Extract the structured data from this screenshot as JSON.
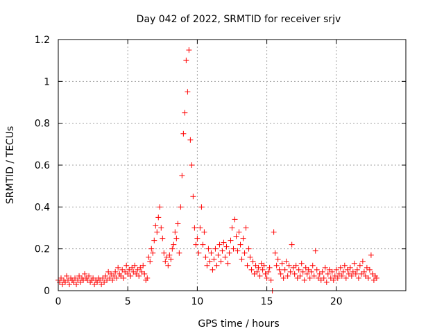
{
  "chart_data": {
    "type": "scatter",
    "title": "Day 042 of 2022, SRMTID for receiver srjv",
    "xlabel": "GPS time / hours",
    "ylabel": "SRMTID / TECUs",
    "xlim": [
      0,
      25
    ],
    "ylim": [
      0,
      1.2
    ],
    "x_ticks": [
      0,
      5,
      10,
      15,
      20
    ],
    "x_tick_labels": [
      "0",
      "5",
      "10",
      "15",
      "20"
    ],
    "y_ticks": [
      0,
      0.2,
      0.4,
      0.6,
      0.8,
      1.0,
      1.2
    ],
    "y_tick_labels": [
      "0",
      "0.2",
      "0.4",
      "0.6",
      "0.8",
      "1",
      "1.2"
    ],
    "grid": true,
    "marker": "plus",
    "series": [
      {
        "name": "srjv",
        "color": "#ff0000",
        "points": [
          [
            0.0,
            0.05
          ],
          [
            0.1,
            0.04
          ],
          [
            0.2,
            0.06
          ],
          [
            0.3,
            0.03
          ],
          [
            0.4,
            0.05
          ],
          [
            0.5,
            0.04
          ],
          [
            0.6,
            0.07
          ],
          [
            0.7,
            0.05
          ],
          [
            0.8,
            0.03
          ],
          [
            0.9,
            0.06
          ],
          [
            1.0,
            0.05
          ],
          [
            1.1,
            0.04
          ],
          [
            1.2,
            0.06
          ],
          [
            1.3,
            0.03
          ],
          [
            1.4,
            0.05
          ],
          [
            1.5,
            0.07
          ],
          [
            1.6,
            0.04
          ],
          [
            1.7,
            0.06
          ],
          [
            1.8,
            0.05
          ],
          [
            1.9,
            0.08
          ],
          [
            2.0,
            0.06
          ],
          [
            2.1,
            0.05
          ],
          [
            2.2,
            0.07
          ],
          [
            2.3,
            0.04
          ],
          [
            2.4,
            0.05
          ],
          [
            2.5,
            0.06
          ],
          [
            2.6,
            0.03
          ],
          [
            2.7,
            0.05
          ],
          [
            2.8,
            0.04
          ],
          [
            2.9,
            0.06
          ],
          [
            3.0,
            0.05
          ],
          [
            3.1,
            0.03
          ],
          [
            3.2,
            0.06
          ],
          [
            3.3,
            0.04
          ],
          [
            3.4,
            0.07
          ],
          [
            3.5,
            0.05
          ],
          [
            3.6,
            0.09
          ],
          [
            3.7,
            0.06
          ],
          [
            3.8,
            0.08
          ],
          [
            3.9,
            0.05
          ],
          [
            4.0,
            0.07
          ],
          [
            4.1,
            0.09
          ],
          [
            4.2,
            0.06
          ],
          [
            4.3,
            0.11
          ],
          [
            4.4,
            0.08
          ],
          [
            4.5,
            0.07
          ],
          [
            4.6,
            0.1
          ],
          [
            4.7,
            0.06
          ],
          [
            4.8,
            0.09
          ],
          [
            4.9,
            0.12
          ],
          [
            5.0,
            0.08
          ],
          [
            5.1,
            0.1
          ],
          [
            5.2,
            0.07
          ],
          [
            5.3,
            0.11
          ],
          [
            5.4,
            0.09
          ],
          [
            5.5,
            0.12
          ],
          [
            5.6,
            0.08
          ],
          [
            5.7,
            0.1
          ],
          [
            5.8,
            0.07
          ],
          [
            5.9,
            0.11
          ],
          [
            6.0,
            0.09
          ],
          [
            6.1,
            0.12
          ],
          [
            6.2,
            0.08
          ],
          [
            6.3,
            0.05
          ],
          [
            6.4,
            0.06
          ],
          [
            6.5,
            0.16
          ],
          [
            6.6,
            0.14
          ],
          [
            6.7,
            0.2
          ],
          [
            6.8,
            0.18
          ],
          [
            6.9,
            0.24
          ],
          [
            7.0,
            0.31
          ],
          [
            7.1,
            0.28
          ],
          [
            7.2,
            0.35
          ],
          [
            7.3,
            0.4
          ],
          [
            7.4,
            0.3
          ],
          [
            7.5,
            0.25
          ],
          [
            7.6,
            0.18
          ],
          [
            7.7,
            0.14
          ],
          [
            7.8,
            0.16
          ],
          [
            7.9,
            0.12
          ],
          [
            8.0,
            0.17
          ],
          [
            8.1,
            0.15
          ],
          [
            8.2,
            0.2
          ],
          [
            8.3,
            0.22
          ],
          [
            8.4,
            0.28
          ],
          [
            8.5,
            0.25
          ],
          [
            8.6,
            0.32
          ],
          [
            8.7,
            0.18
          ],
          [
            8.8,
            0.4
          ],
          [
            8.9,
            0.55
          ],
          [
            9.0,
            0.75
          ],
          [
            9.1,
            0.85
          ],
          [
            9.2,
            1.1
          ],
          [
            9.3,
            0.95
          ],
          [
            9.4,
            1.15
          ],
          [
            9.5,
            0.72
          ],
          [
            9.6,
            0.6
          ],
          [
            9.7,
            0.45
          ],
          [
            9.8,
            0.3
          ],
          [
            9.9,
            0.22
          ],
          [
            10.0,
            0.25
          ],
          [
            10.1,
            0.18
          ],
          [
            10.2,
            0.3
          ],
          [
            10.3,
            0.4
          ],
          [
            10.4,
            0.22
          ],
          [
            10.5,
            0.28
          ],
          [
            10.6,
            0.16
          ],
          [
            10.7,
            0.12
          ],
          [
            10.8,
            0.2
          ],
          [
            10.9,
            0.14
          ],
          [
            11.0,
            0.18
          ],
          [
            11.1,
            0.1
          ],
          [
            11.2,
            0.15
          ],
          [
            11.3,
            0.2
          ],
          [
            11.4,
            0.12
          ],
          [
            11.5,
            0.17
          ],
          [
            11.6,
            0.22
          ],
          [
            11.7,
            0.14
          ],
          [
            11.8,
            0.19
          ],
          [
            11.9,
            0.23
          ],
          [
            12.0,
            0.16
          ],
          [
            12.1,
            0.21
          ],
          [
            12.2,
            0.13
          ],
          [
            12.3,
            0.18
          ],
          [
            12.4,
            0.24
          ],
          [
            12.5,
            0.3
          ],
          [
            12.6,
            0.2
          ],
          [
            12.7,
            0.34
          ],
          [
            12.8,
            0.26
          ],
          [
            12.9,
            0.19
          ],
          [
            13.0,
            0.28
          ],
          [
            13.1,
            0.22
          ],
          [
            13.2,
            0.15
          ],
          [
            13.3,
            0.25
          ],
          [
            13.4,
            0.18
          ],
          [
            13.5,
            0.3
          ],
          [
            13.6,
            0.12
          ],
          [
            13.7,
            0.2
          ],
          [
            13.8,
            0.16
          ],
          [
            13.9,
            0.1
          ],
          [
            14.0,
            0.14
          ],
          [
            14.1,
            0.08
          ],
          [
            14.2,
            0.12
          ],
          [
            14.3,
            0.09
          ],
          [
            14.4,
            0.11
          ],
          [
            14.5,
            0.07
          ],
          [
            14.6,
            0.13
          ],
          [
            14.7,
            0.1
          ],
          [
            14.8,
            0.12
          ],
          [
            14.9,
            0.08
          ],
          [
            15.0,
            0.06
          ],
          [
            15.1,
            0.09
          ],
          [
            15.2,
            0.11
          ],
          [
            15.3,
            0.05
          ],
          [
            15.4,
            0.0
          ],
          [
            15.5,
            0.28
          ],
          [
            15.6,
            0.18
          ],
          [
            15.7,
            0.12
          ],
          [
            15.8,
            0.15
          ],
          [
            15.9,
            0.1
          ],
          [
            16.0,
            0.08
          ],
          [
            16.1,
            0.13
          ],
          [
            16.2,
            0.06
          ],
          [
            16.3,
            0.1
          ],
          [
            16.4,
            0.14
          ],
          [
            16.5,
            0.07
          ],
          [
            16.6,
            0.12
          ],
          [
            16.7,
            0.09
          ],
          [
            16.8,
            0.22
          ],
          [
            16.9,
            0.11
          ],
          [
            17.0,
            0.08
          ],
          [
            17.1,
            0.12
          ],
          [
            17.2,
            0.06
          ],
          [
            17.3,
            0.1
          ],
          [
            17.4,
            0.07
          ],
          [
            17.5,
            0.13
          ],
          [
            17.6,
            0.09
          ],
          [
            17.7,
            0.05
          ],
          [
            17.8,
            0.11
          ],
          [
            17.9,
            0.08
          ],
          [
            18.0,
            0.1
          ],
          [
            18.1,
            0.06
          ],
          [
            18.2,
            0.09
          ],
          [
            18.3,
            0.12
          ],
          [
            18.4,
            0.07
          ],
          [
            18.5,
            0.19
          ],
          [
            18.6,
            0.1
          ],
          [
            18.7,
            0.06
          ],
          [
            18.8,
            0.08
          ],
          [
            18.9,
            0.05
          ],
          [
            19.0,
            0.09
          ],
          [
            19.1,
            0.06
          ],
          [
            19.2,
            0.11
          ],
          [
            19.3,
            0.04
          ],
          [
            19.4,
            0.08
          ],
          [
            19.5,
            0.1
          ],
          [
            19.6,
            0.06
          ],
          [
            19.7,
            0.09
          ],
          [
            19.8,
            0.05
          ],
          [
            19.9,
            0.07
          ],
          [
            20.0,
            0.1
          ],
          [
            20.1,
            0.06
          ],
          [
            20.2,
            0.08
          ],
          [
            20.3,
            0.11
          ],
          [
            20.4,
            0.07
          ],
          [
            20.5,
            0.09
          ],
          [
            20.6,
            0.12
          ],
          [
            20.7,
            0.06
          ],
          [
            20.8,
            0.1
          ],
          [
            20.9,
            0.08
          ],
          [
            21.0,
            0.11
          ],
          [
            21.1,
            0.07
          ],
          [
            21.2,
            0.09
          ],
          [
            21.3,
            0.13
          ],
          [
            21.4,
            0.08
          ],
          [
            21.5,
            0.1
          ],
          [
            21.6,
            0.06
          ],
          [
            21.7,
            0.12
          ],
          [
            21.8,
            0.08
          ],
          [
            21.9,
            0.14
          ],
          [
            22.0,
            0.09
          ],
          [
            22.1,
            0.07
          ],
          [
            22.2,
            0.11
          ],
          [
            22.3,
            0.06
          ],
          [
            22.4,
            0.1
          ],
          [
            22.5,
            0.17
          ],
          [
            22.6,
            0.08
          ],
          [
            22.7,
            0.05
          ],
          [
            22.8,
            0.07
          ],
          [
            22.9,
            0.06
          ]
        ]
      }
    ]
  }
}
